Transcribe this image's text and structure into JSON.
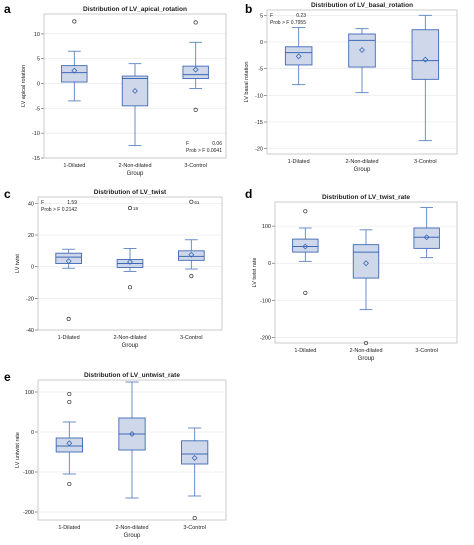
{
  "colors": {
    "box_fill": "#cfd8ea",
    "box_stroke": "#3e69b5",
    "median": "#3e69b5",
    "whisker": "#5a82c4",
    "mean_marker": "#3e69b5",
    "outlier": "#333333",
    "frame": "#bfbfbf",
    "gridline": "#e6e6e6"
  },
  "chart_data": [
    {
      "letter": "a",
      "type": "box",
      "title": "Distribution of LV_apical_rotation",
      "xlabel": "Group",
      "ylabel": "LV apical rotation",
      "categories": [
        "1-Dilated",
        "2-Non-dilated",
        "3-Control"
      ],
      "ylim": [
        -15,
        14
      ],
      "yticks": [
        -15,
        -10,
        -5,
        0,
        5,
        10
      ],
      "boxes": [
        {
          "min": -3.5,
          "q1": 0.3,
          "median": 2.2,
          "q3": 3.6,
          "max": 6.5,
          "mean": 2.6,
          "outliers": [
            12.5
          ]
        },
        {
          "min": -12.5,
          "q1": -4.5,
          "median": 1.0,
          "q3": 1.5,
          "max": 4.0,
          "mean": -1.5,
          "outliers": []
        },
        {
          "min": -1.0,
          "q1": 1.0,
          "median": 1.8,
          "q3": 3.5,
          "max": 8.3,
          "mean": 2.8,
          "outliers": [
            12.3,
            -5.3
          ]
        }
      ],
      "stats_lines": [
        "F",
        "0.06",
        "Prob > F",
        "0.0041"
      ],
      "stats_position": "bottom-right"
    },
    {
      "letter": "b",
      "type": "box",
      "title": "Distribution of LV_basal_rotation",
      "xlabel": "Group",
      "ylabel": "LV basal rotation",
      "categories": [
        "1-Dilated",
        "2-Non-dilated",
        "3-Control"
      ],
      "ylim": [
        -21,
        6
      ],
      "yticks": [
        -20,
        -15,
        -10,
        -5,
        0,
        5
      ],
      "boxes": [
        {
          "min": -8.0,
          "q1": -4.3,
          "median": -2.0,
          "q3": -0.9,
          "max": 2.7,
          "mean": -2.7,
          "outliers": []
        },
        {
          "min": -9.5,
          "q1": -4.7,
          "median": 0.3,
          "q3": 1.5,
          "max": 2.5,
          "mean": -1.5,
          "outliers": []
        },
        {
          "min": -18.5,
          "q1": -7.0,
          "median": -3.5,
          "q3": 2.3,
          "max": 5.0,
          "mean": -3.3,
          "outliers": []
        }
      ],
      "stats_lines": [
        "F",
        "0.23",
        "Prob > F",
        "0.7955"
      ],
      "stats_position": "top-left"
    },
    {
      "letter": "c",
      "type": "box",
      "title": "Distribution of LV_twist",
      "xlabel": "Group",
      "ylabel": "LV twist",
      "categories": [
        "1-Dilated",
        "2-Non-dilated",
        "3-Control"
      ],
      "ylim": [
        -40,
        44
      ],
      "yticks": [
        -40,
        -20,
        0,
        20,
        40
      ],
      "boxes": [
        {
          "min": -1.0,
          "q1": 2.0,
          "median": 6.0,
          "q3": 8.5,
          "max": 11.0,
          "mean": 3.5,
          "outliers": [
            -33.0
          ]
        },
        {
          "min": -3.0,
          "q1": -0.5,
          "median": 2.0,
          "q3": 4.5,
          "max": 11.5,
          "mean": 3.0,
          "outliers": [
            37.0,
            -13.0
          ]
        },
        {
          "min": -1.5,
          "q1": 4.0,
          "median": 6.5,
          "q3": 10.0,
          "max": 17.0,
          "mean": 7.5,
          "outliers": [
            41.0,
            -6.0
          ]
        }
      ],
      "outlier_labels": [
        "18",
        "61"
      ],
      "stats_lines": [
        "F",
        "1.59",
        "Prob > F",
        "0.2142"
      ],
      "stats_position": "top-left"
    },
    {
      "letter": "d",
      "type": "box",
      "title": "Distribution of LV_twist_rate",
      "xlabel": "Group",
      "ylabel": "LV twist rate",
      "categories": [
        "1-Dilated",
        "2-Non-dilated",
        "3-Control"
      ],
      "ylim": [
        -215,
        165
      ],
      "yticks": [
        -200,
        -100,
        0,
        100
      ],
      "boxes": [
        {
          "min": 5,
          "q1": 30,
          "median": 45,
          "q3": 65,
          "max": 95,
          "mean": 45,
          "outliers": [
            140,
            -80
          ]
        },
        {
          "min": -125,
          "q1": -40,
          "median": 30,
          "q3": 50,
          "max": 90,
          "mean": 0,
          "outliers": [
            -215
          ]
        },
        {
          "min": 15,
          "q1": 40,
          "median": 70,
          "q3": 95,
          "max": 150,
          "mean": 70,
          "outliers": []
        }
      ],
      "stats_lines": [],
      "stats_position": ""
    },
    {
      "letter": "e",
      "type": "box",
      "title": "Distribution of LV_untwist_rate",
      "xlabel": "Group",
      "ylabel": "LV untwist rate",
      "categories": [
        "1-Dilated",
        "2-Non-dilated",
        "3-Control"
      ],
      "ylim": [
        -220,
        130
      ],
      "yticks": [
        -200,
        -100,
        0,
        100
      ],
      "boxes": [
        {
          "min": -105,
          "q1": -50,
          "median": -35,
          "q3": -15,
          "max": 25,
          "mean": -28,
          "outliers": [
            95,
            75,
            -130
          ]
        },
        {
          "min": -165,
          "q1": -45,
          "median": -5,
          "q3": 35,
          "max": 125,
          "mean": -5,
          "outliers": []
        },
        {
          "min": -160,
          "q1": -80,
          "median": -55,
          "q3": -22,
          "max": 10,
          "mean": -65,
          "outliers": [
            -215
          ]
        }
      ],
      "stats_lines": [],
      "stats_position": ""
    }
  ]
}
